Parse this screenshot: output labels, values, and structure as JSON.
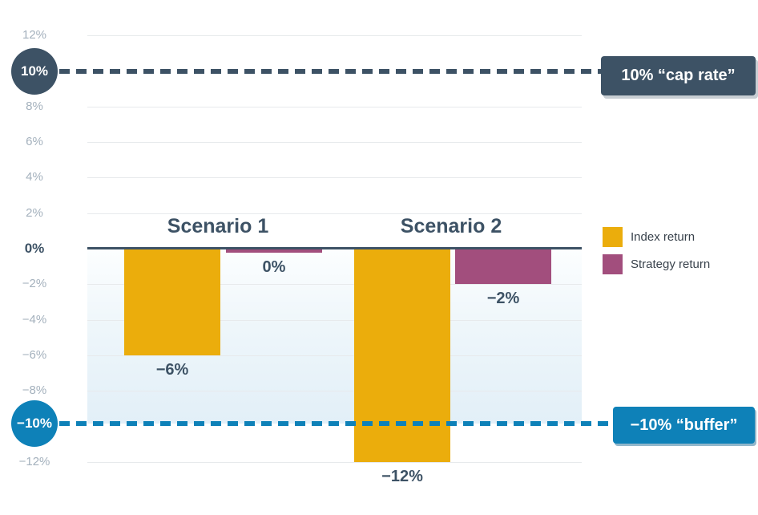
{
  "colors": {
    "slate": "#3d5265",
    "blue": "#0e81b8",
    "gold": "#ebad0c",
    "maroon": "#a24e7d",
    "tick_gray": "#a4b1bd",
    "gridline": "#e7eaec",
    "buffer_shade": "#e2eff8"
  },
  "chart_data": {
    "type": "bar",
    "title": "",
    "xlabel": "",
    "ylabel": "",
    "y_axis": {
      "min": -12,
      "max": 12,
      "tick_step": 2,
      "unit": "%",
      "ticks": [
        {
          "value": 12,
          "label": "12%"
        },
        {
          "value": 8,
          "label": "8%"
        },
        {
          "value": 6,
          "label": "6%"
        },
        {
          "value": 4,
          "label": "4%"
        },
        {
          "value": 2,
          "label": "2%"
        },
        {
          "value": 0,
          "label": "0%"
        },
        {
          "value": -2,
          "label": "−2%"
        },
        {
          "value": -4,
          "label": "−4%"
        },
        {
          "value": -6,
          "label": "−6%"
        },
        {
          "value": -8,
          "label": "−8%"
        },
        {
          "value": -12,
          "label": "−12%"
        }
      ]
    },
    "groups": [
      {
        "label": "Scenario 1",
        "bars": [
          {
            "series": "Index return",
            "value": -6,
            "value_label": "−6%"
          },
          {
            "series": "Strategy return",
            "value": 0,
            "value_label": "0%"
          }
        ]
      },
      {
        "label": "Scenario 2",
        "bars": [
          {
            "series": "Index return",
            "value": -12,
            "value_label": "−12%"
          },
          {
            "series": "Strategy return",
            "value": -2,
            "value_label": "−2%"
          }
        ]
      }
    ],
    "legend": [
      {
        "label": "Index return",
        "color": "#ebad0c"
      },
      {
        "label": "Strategy return",
        "color": "#a24e7d"
      }
    ],
    "reference_lines": [
      {
        "value": 10,
        "badge": "10%",
        "callout": "10% “cap rate”",
        "color": "#3d5265"
      },
      {
        "value": -10,
        "badge": "−10%",
        "callout": "−10% “buffer”",
        "color": "#0e81b8"
      }
    ],
    "buffer_zone": {
      "from": 0,
      "to": -10
    },
    "grid": true,
    "legend_position": "right"
  }
}
